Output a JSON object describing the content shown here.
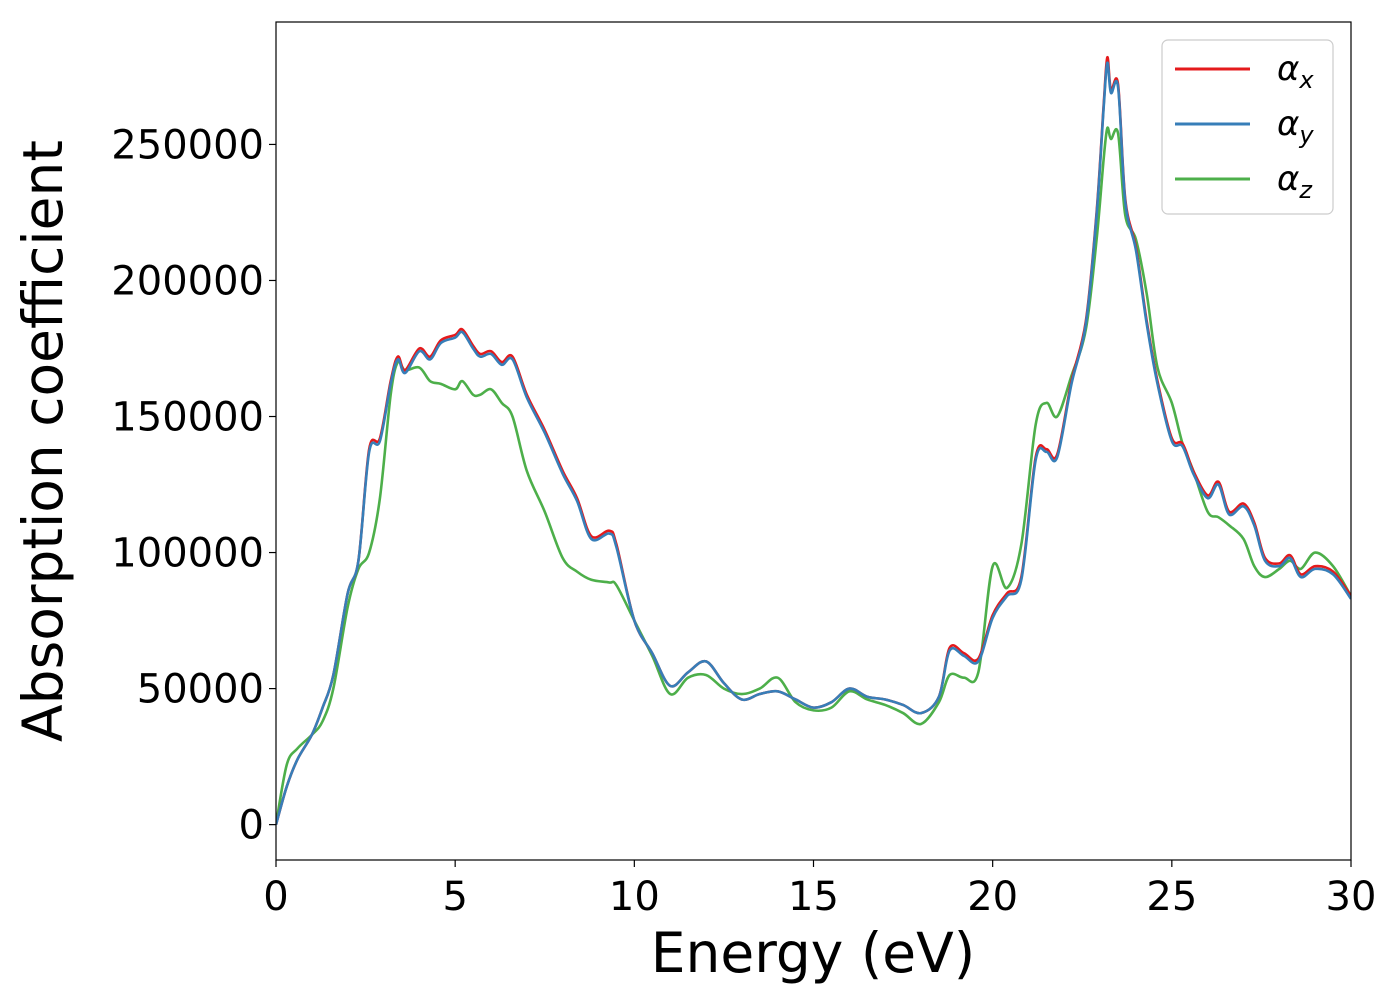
{
  "chart_data": {
    "type": "line",
    "xlabel": "Energy (eV)",
    "ylabel": "Absorption coefficient",
    "xlim": [
      0,
      30
    ],
    "ylim": [
      -13000,
      295000
    ],
    "xticks": [
      0,
      5,
      10,
      15,
      20,
      25,
      30
    ],
    "xtick_labels": [
      "0",
      "5",
      "10",
      "15",
      "20",
      "25",
      "30"
    ],
    "yticks": [
      0,
      50000,
      100000,
      150000,
      200000,
      250000
    ],
    "ytick_labels": [
      "0",
      "50000",
      "100000",
      "150000",
      "200000",
      "250000"
    ],
    "grid": false,
    "legend_position": "top-right",
    "series": [
      {
        "name": "α",
        "subscript": "x",
        "color": "#e41a1c",
        "x": [
          0,
          0.3,
          0.6,
          1,
          1.3,
          1.6,
          2,
          2.3,
          2.6,
          2.9,
          3.2,
          3.4,
          3.6,
          4,
          4.3,
          4.6,
          5,
          5.2,
          5.5,
          5.7,
          6,
          6.3,
          6.6,
          7,
          7.5,
          8,
          8.4,
          8.8,
          9.3,
          9.5,
          10,
          10.5,
          11,
          11.5,
          12,
          12.5,
          13,
          13.5,
          14,
          14.5,
          15,
          15.5,
          16,
          16.5,
          17,
          17.5,
          18,
          18.5,
          18.8,
          19.2,
          19.6,
          20,
          20.4,
          20.8,
          21.2,
          21.5,
          21.8,
          22.2,
          22.6,
          22.9,
          23.1,
          23.2,
          23.3,
          23.5,
          23.7,
          24,
          24.3,
          24.6,
          25,
          25.3,
          25.6,
          26,
          26.3,
          26.6,
          27,
          27.3,
          27.6,
          28,
          28.3,
          28.6,
          29,
          29.5,
          30
        ],
        "y": [
          0,
          14000,
          24000,
          33000,
          43000,
          55000,
          85000,
          97000,
          138000,
          142000,
          163000,
          172000,
          167000,
          175000,
          172000,
          178000,
          180000,
          182000,
          176000,
          173000,
          174000,
          170000,
          172000,
          158000,
          145000,
          130000,
          120000,
          106000,
          108000,
          103000,
          75000,
          63000,
          51000,
          56000,
          60000,
          52000,
          46000,
          48000,
          49000,
          46000,
          43000,
          45000,
          50000,
          47000,
          46000,
          44000,
          41000,
          47000,
          65000,
          63000,
          61000,
          77000,
          85000,
          91000,
          135000,
          138000,
          136000,
          163000,
          185000,
          225000,
          265000,
          282000,
          270000,
          272000,
          230000,
          212000,
          185000,
          163000,
          142000,
          140000,
          130000,
          121000,
          126000,
          115000,
          118000,
          111000,
          98000,
          96000,
          99000,
          92000,
          95000,
          93000,
          84000
        ]
      },
      {
        "name": "α",
        "subscript": "y",
        "color": "#377eb8",
        "x": [
          0,
          0.3,
          0.6,
          1,
          1.3,
          1.6,
          2,
          2.3,
          2.6,
          2.9,
          3.2,
          3.4,
          3.6,
          4,
          4.3,
          4.6,
          5,
          5.2,
          5.5,
          5.7,
          6,
          6.3,
          6.6,
          7,
          7.5,
          8,
          8.4,
          8.8,
          9.3,
          9.5,
          10,
          10.5,
          11,
          11.5,
          12,
          12.5,
          13,
          13.5,
          14,
          14.5,
          15,
          15.5,
          16,
          16.5,
          17,
          17.5,
          18,
          18.5,
          18.8,
          19.2,
          19.6,
          20,
          20.4,
          20.8,
          21.2,
          21.5,
          21.8,
          22.2,
          22.6,
          22.9,
          23.1,
          23.2,
          23.3,
          23.5,
          23.7,
          24,
          24.3,
          24.6,
          25,
          25.3,
          25.6,
          26,
          26.3,
          26.6,
          27,
          27.3,
          27.6,
          28,
          28.3,
          28.6,
          29,
          29.5,
          30
        ],
        "y": [
          0,
          14000,
          24000,
          33000,
          43000,
          55000,
          85000,
          97000,
          137000,
          141000,
          162000,
          171000,
          166000,
          174000,
          171000,
          177000,
          179000,
          181000,
          175000,
          172000,
          173000,
          169000,
          171000,
          157000,
          144000,
          129000,
          119000,
          105000,
          107000,
          102000,
          75000,
          63000,
          51000,
          56000,
          60000,
          52000,
          46000,
          48000,
          49000,
          46000,
          43000,
          45000,
          50000,
          47000,
          46000,
          44000,
          41000,
          47000,
          64000,
          62000,
          60000,
          76000,
          84000,
          90000,
          134000,
          137000,
          135000,
          162000,
          184000,
          224000,
          264000,
          280000,
          269000,
          271000,
          229000,
          211000,
          184000,
          162000,
          141000,
          139000,
          129000,
          120000,
          125000,
          114000,
          117000,
          110000,
          97000,
          95000,
          98000,
          91000,
          94000,
          92000,
          83000
        ]
      },
      {
        "name": "α",
        "subscript": "z",
        "color": "#4daf4a",
        "x": [
          0,
          0.3,
          0.6,
          1,
          1.3,
          1.6,
          2,
          2.3,
          2.6,
          2.9,
          3.2,
          3.4,
          3.6,
          4,
          4.3,
          4.6,
          5,
          5.2,
          5.5,
          5.7,
          6,
          6.3,
          6.6,
          7,
          7.5,
          8,
          8.4,
          8.8,
          9.3,
          9.5,
          10,
          10.5,
          11,
          11.5,
          12,
          12.5,
          13,
          13.5,
          14,
          14.5,
          15,
          15.5,
          16,
          16.5,
          17,
          17.5,
          18,
          18.5,
          18.8,
          19.2,
          19.6,
          20,
          20.4,
          20.8,
          21.2,
          21.5,
          21.8,
          22.2,
          22.6,
          22.9,
          23.1,
          23.2,
          23.3,
          23.5,
          23.7,
          24,
          24.3,
          24.6,
          25,
          25.3,
          25.6,
          26,
          26.3,
          26.6,
          27,
          27.3,
          27.6,
          28,
          28.3,
          28.6,
          29,
          29.5,
          30
        ],
        "y": [
          0,
          22000,
          28000,
          33000,
          38000,
          50000,
          80000,
          94000,
          100000,
          120000,
          158000,
          170000,
          167000,
          168000,
          163000,
          162000,
          160000,
          163000,
          158000,
          158000,
          160000,
          155000,
          150000,
          130000,
          115000,
          98000,
          93000,
          90000,
          89000,
          88000,
          75000,
          62000,
          48000,
          54000,
          55000,
          50000,
          48000,
          50000,
          54000,
          45000,
          42000,
          43000,
          49000,
          46000,
          44000,
          41000,
          37000,
          45000,
          55000,
          54000,
          56000,
          95000,
          87000,
          103000,
          147000,
          155000,
          150000,
          165000,
          182000,
          215000,
          245000,
          256000,
          252000,
          254000,
          224000,
          215000,
          195000,
          168000,
          155000,
          140000,
          130000,
          115000,
          113000,
          110000,
          105000,
          95000,
          91000,
          94000,
          97000,
          94000,
          100000,
          95000,
          84000
        ]
      }
    ]
  }
}
